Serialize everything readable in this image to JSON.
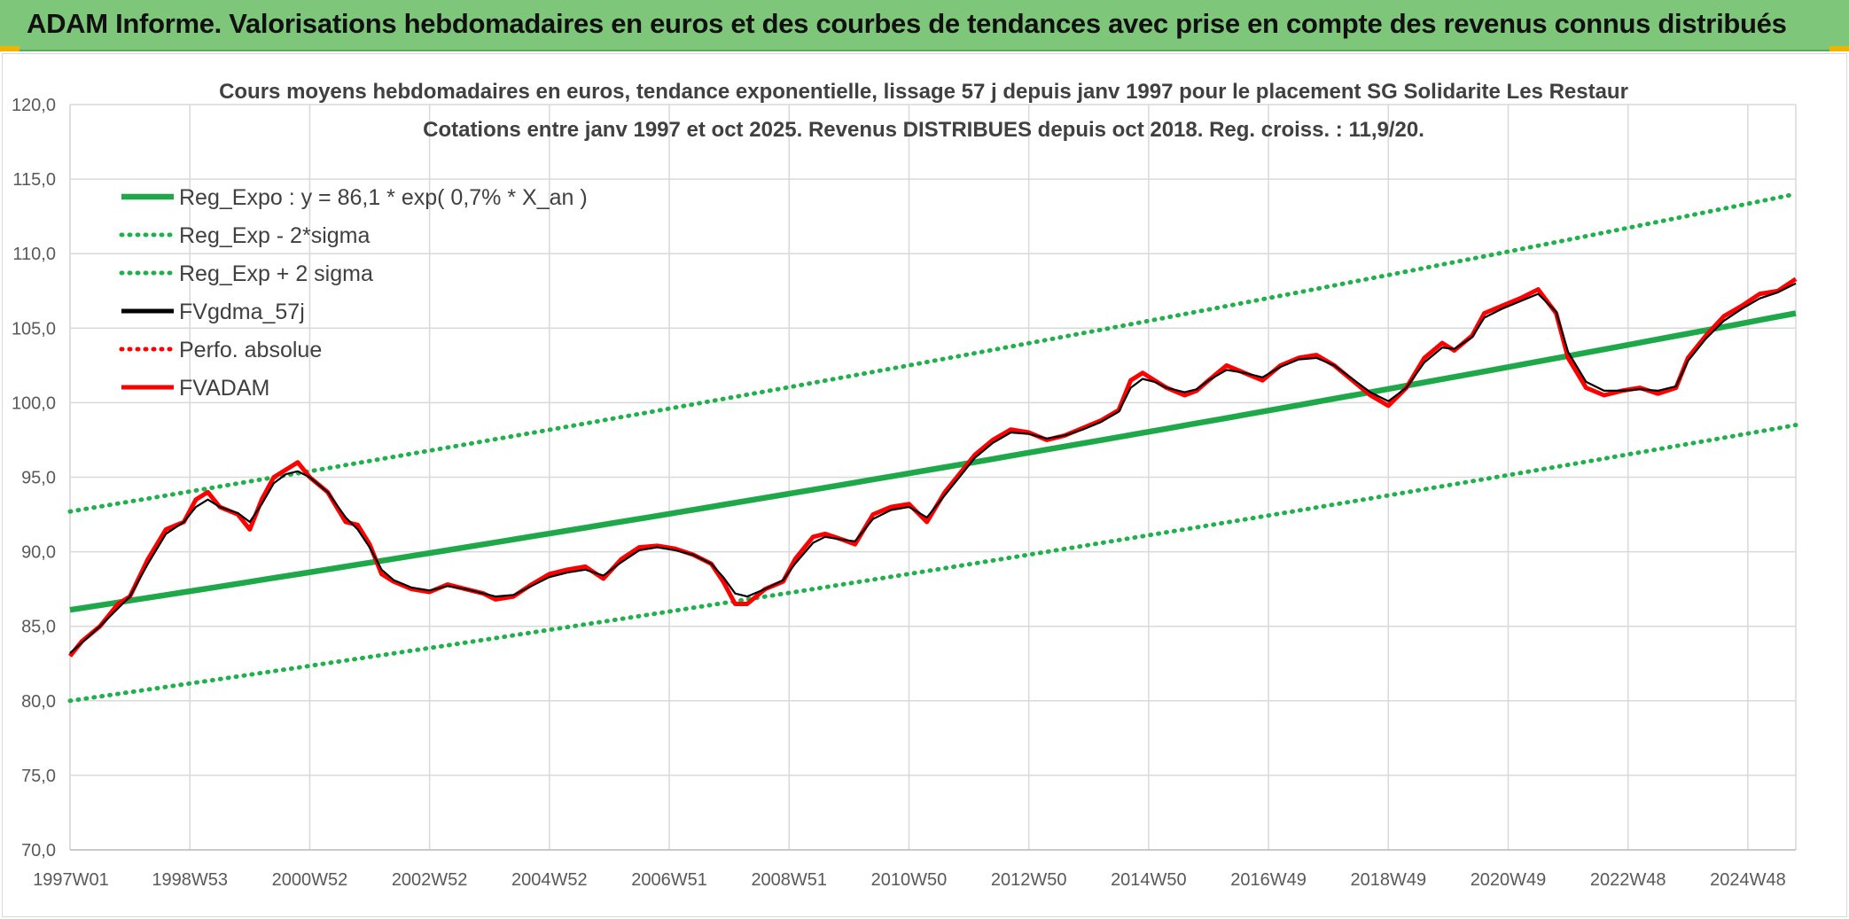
{
  "banner": {
    "title": "ADAM Informe. Valorisations hebdomadaires en euros et des courbes de tendances avec prise en compte des revenus connus distribués"
  },
  "colors": {
    "banner_bg": "#7dc67a",
    "reg_green": "#1fa84a",
    "reg_dotted": "#22b04f",
    "fvgdma": "#000000",
    "fvadam": "#ff0000",
    "perfo": "#ff0000",
    "corner": "#f0b400"
  },
  "chart_data": {
    "type": "line",
    "title": "Cours moyens hebdomadaires en euros, tendance exponentielle, lissage 57 j depuis janv 1997 pour le placement SG Solidarite Les Restaur",
    "subtitle": "Cotations entre janv 1997 et oct 2025. Revenus DISTRIBUES depuis oct 2018. Reg. croiss. : 11,9/20.",
    "x_range": [
      1997.0,
      2025.8
    ],
    "x_ticks": [
      {
        "label": "1997W01",
        "year": 1997.0
      },
      {
        "label": "1998W53",
        "year": 1999.0
      },
      {
        "label": "2000W52",
        "year": 2001.0
      },
      {
        "label": "2002W52",
        "year": 2003.0
      },
      {
        "label": "2004W52",
        "year": 2005.0
      },
      {
        "label": "2006W51",
        "year": 2007.0
      },
      {
        "label": "2008W51",
        "year": 2009.0
      },
      {
        "label": "2010W50",
        "year": 2011.0
      },
      {
        "label": "2012W50",
        "year": 2013.0
      },
      {
        "label": "2014W50",
        "year": 2015.0
      },
      {
        "label": "2016W49",
        "year": 2017.0
      },
      {
        "label": "2018W49",
        "year": 2019.0
      },
      {
        "label": "2020W49",
        "year": 2021.0
      },
      {
        "label": "2022W48",
        "year": 2023.0
      },
      {
        "label": "2024W48",
        "year": 2025.0
      }
    ],
    "ylim": [
      70,
      120
    ],
    "y_ticks": [
      "70,0",
      "75,0",
      "80,0",
      "85,0",
      "90,0",
      "95,0",
      "100,0",
      "105,0",
      "110,0",
      "115,0",
      "120,0"
    ],
    "grid": true,
    "legend_position": "top-left",
    "legend": [
      {
        "name": "Reg_Expo : y = 86,1 * exp( 0,7% *  X_an )",
        "style": "solid",
        "color": "#1fa84a"
      },
      {
        "name": "Reg_Exp - 2*sigma",
        "style": "dotted",
        "color": "#22b04f"
      },
      {
        "name": "Reg_Exp + 2 sigma",
        "style": "dotted",
        "color": "#22b04f"
      },
      {
        "name": "FVgdma_57j",
        "style": "solid",
        "color": "#000000"
      },
      {
        "name": "Perfo. absolue",
        "style": "dotted",
        "color": "#ff0000"
      },
      {
        "name": "FVADAM",
        "style": "solid",
        "color": "#ff0000"
      }
    ],
    "series": [
      {
        "name": "Reg_Expo : y = 86,1 * exp( 0,7% *  X_an )",
        "x": [
          1997.0,
          2025.8
        ],
        "y": [
          86.1,
          106.0
        ]
      },
      {
        "name": "Reg_Exp - 2*sigma",
        "x": [
          1997.0,
          2025.8
        ],
        "y": [
          80.0,
          98.5
        ]
      },
      {
        "name": "Reg_Exp + 2 sigma",
        "x": [
          1997.0,
          2025.8
        ],
        "y": [
          92.7,
          114.0
        ]
      },
      {
        "name": "FVADAM",
        "x": [
          1997.0,
          1997.2,
          1997.5,
          1997.8,
          1998.0,
          1998.3,
          1998.6,
          1998.9,
          1999.1,
          1999.3,
          1999.5,
          1999.8,
          2000.0,
          2000.2,
          2000.4,
          2000.6,
          2000.8,
          2001.0,
          2001.3,
          2001.6,
          2001.8,
          2002.0,
          2002.2,
          2002.4,
          2002.7,
          2003.0,
          2003.3,
          2003.6,
          2003.9,
          2004.1,
          2004.4,
          2004.7,
          2005.0,
          2005.3,
          2005.6,
          2005.9,
          2006.2,
          2006.5,
          2006.8,
          2007.1,
          2007.4,
          2007.7,
          2007.9,
          2008.1,
          2008.3,
          2008.6,
          2008.9,
          2009.1,
          2009.4,
          2009.6,
          2009.9,
          2010.1,
          2010.4,
          2010.7,
          2011.0,
          2011.3,
          2011.6,
          2011.9,
          2012.1,
          2012.4,
          2012.7,
          2013.0,
          2013.3,
          2013.6,
          2013.9,
          2014.2,
          2014.5,
          2014.7,
          2014.9,
          2015.1,
          2015.3,
          2015.6,
          2015.8,
          2016.0,
          2016.3,
          2016.6,
          2016.9,
          2017.2,
          2017.5,
          2017.8,
          2018.1,
          2018.4,
          2018.7,
          2019.0,
          2019.3,
          2019.6,
          2019.9,
          2020.1,
          2020.4,
          2020.6,
          2020.9,
          2021.2,
          2021.5,
          2021.8,
          2022.0,
          2022.3,
          2022.6,
          2022.9,
          2023.2,
          2023.5,
          2023.8,
          2024.0,
          2024.3,
          2024.6,
          2024.9,
          2025.2,
          2025.5,
          2025.8
        ],
        "y": [
          83.0,
          84.0,
          85.0,
          86.5,
          87.0,
          89.5,
          91.5,
          92.0,
          93.5,
          94.0,
          93.0,
          92.5,
          91.5,
          93.5,
          95.0,
          95.5,
          96.0,
          95.0,
          94.0,
          92.0,
          91.8,
          90.5,
          88.5,
          88.0,
          87.5,
          87.3,
          87.8,
          87.5,
          87.2,
          86.8,
          87.0,
          87.8,
          88.5,
          88.8,
          89.0,
          88.2,
          89.5,
          90.3,
          90.4,
          90.2,
          89.8,
          89.2,
          88.0,
          86.5,
          86.5,
          87.5,
          88.0,
          89.5,
          91.0,
          91.2,
          90.8,
          90.5,
          92.5,
          93.0,
          93.2,
          92.0,
          94.0,
          95.5,
          96.5,
          97.5,
          98.2,
          98.0,
          97.5,
          97.8,
          98.3,
          98.8,
          99.5,
          101.5,
          102.0,
          101.5,
          101.0,
          100.5,
          100.8,
          101.5,
          102.5,
          102.0,
          101.5,
          102.5,
          103.0,
          103.2,
          102.5,
          101.5,
          100.5,
          99.8,
          101.0,
          103.0,
          104.0,
          103.5,
          104.5,
          106.0,
          106.5,
          107.0,
          107.6,
          106.0,
          103.0,
          101.0,
          100.5,
          100.8,
          101.0,
          100.6,
          101.0,
          103.0,
          104.5,
          105.8,
          106.5,
          107.3,
          107.5,
          108.3
        ]
      },
      {
        "name": "FVgdma_57j",
        "x": [
          1997.0,
          1997.2,
          1997.5,
          1997.8,
          1998.0,
          1998.3,
          1998.6,
          1998.9,
          1999.1,
          1999.3,
          1999.5,
          1999.8,
          2000.0,
          2000.2,
          2000.4,
          2000.6,
          2000.8,
          2001.0,
          2001.3,
          2001.6,
          2001.8,
          2002.0,
          2002.2,
          2002.4,
          2002.7,
          2003.0,
          2003.3,
          2003.6,
          2003.9,
          2004.1,
          2004.4,
          2004.7,
          2005.0,
          2005.3,
          2005.6,
          2005.9,
          2006.2,
          2006.5,
          2006.8,
          2007.1,
          2007.4,
          2007.7,
          2007.9,
          2008.1,
          2008.3,
          2008.6,
          2008.9,
          2009.1,
          2009.4,
          2009.6,
          2009.9,
          2010.1,
          2010.4,
          2010.7,
          2011.0,
          2011.3,
          2011.6,
          2011.9,
          2012.1,
          2012.4,
          2012.7,
          2013.0,
          2013.3,
          2013.6,
          2013.9,
          2014.2,
          2014.5,
          2014.7,
          2014.9,
          2015.1,
          2015.3,
          2015.6,
          2015.8,
          2016.0,
          2016.3,
          2016.6,
          2016.9,
          2017.2,
          2017.5,
          2017.8,
          2018.1,
          2018.4,
          2018.7,
          2019.0,
          2019.3,
          2019.6,
          2019.9,
          2020.1,
          2020.4,
          2020.6,
          2020.9,
          2021.2,
          2021.5,
          2021.8,
          2022.0,
          2022.3,
          2022.6,
          2022.9,
          2023.2,
          2023.5,
          2023.8,
          2024.0,
          2024.3,
          2024.6,
          2024.9,
          2025.2,
          2025.5,
          2025.8
        ],
        "y": [
          83.2,
          83.9,
          85.0,
          86.2,
          87.0,
          89.2,
          91.2,
          92.0,
          93.0,
          93.5,
          93.0,
          92.6,
          92.0,
          93.2,
          94.6,
          95.2,
          95.4,
          95.0,
          94.0,
          92.3,
          91.5,
          90.3,
          88.8,
          88.1,
          87.6,
          87.4,
          87.7,
          87.5,
          87.2,
          87.0,
          87.1,
          87.7,
          88.3,
          88.6,
          88.8,
          88.4,
          89.3,
          90.1,
          90.3,
          90.1,
          89.8,
          89.2,
          88.3,
          87.2,
          87.0,
          87.5,
          88.1,
          89.2,
          90.6,
          91.0,
          90.8,
          90.7,
          92.2,
          92.8,
          93.0,
          92.3,
          93.8,
          95.3,
          96.3,
          97.3,
          98.0,
          97.9,
          97.6,
          97.8,
          98.2,
          98.7,
          99.4,
          101.0,
          101.6,
          101.4,
          101.0,
          100.7,
          100.9,
          101.5,
          102.2,
          102.0,
          101.7,
          102.4,
          102.9,
          103.0,
          102.5,
          101.6,
          100.7,
          100.1,
          101.0,
          102.7,
          103.7,
          103.6,
          104.4,
          105.7,
          106.3,
          106.8,
          107.3,
          106.1,
          103.4,
          101.4,
          100.8,
          100.8,
          100.9,
          100.8,
          101.1,
          102.8,
          104.3,
          105.5,
          106.3,
          107.0,
          107.4,
          108.0
        ]
      }
    ]
  }
}
